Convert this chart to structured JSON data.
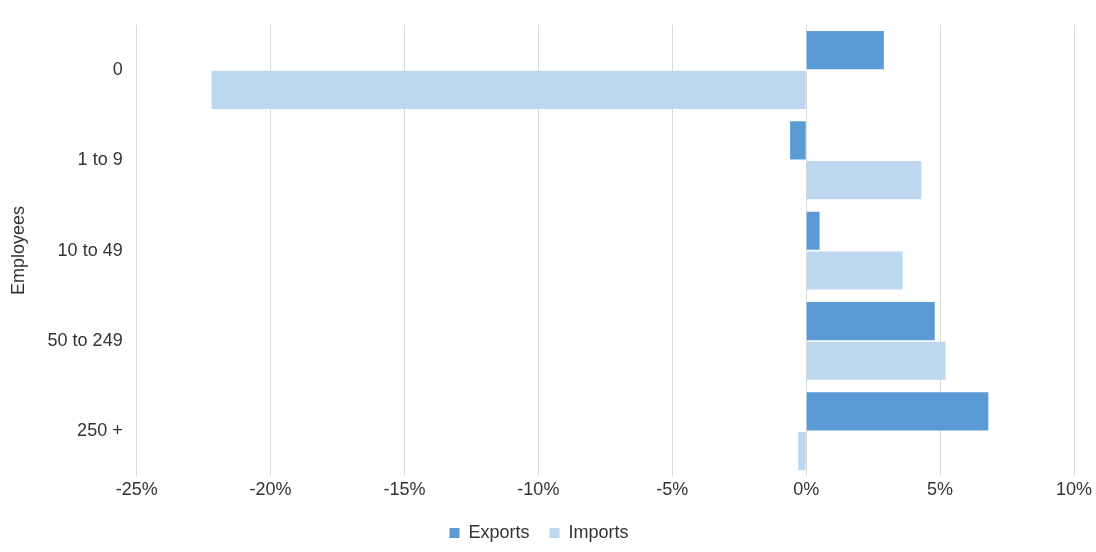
{
  "chart_data": {
    "type": "bar",
    "orientation": "horizontal",
    "ylabel": "Employees",
    "categories": [
      "0",
      "1 to 9",
      "10 to 49",
      "50 to 249",
      "250 +"
    ],
    "series": [
      {
        "name": "Exports",
        "color": "#5b9bd5",
        "values": [
          2.9,
          -0.6,
          0.5,
          4.8,
          6.8
        ]
      },
      {
        "name": "Imports",
        "color": "#bdd7ee",
        "values": [
          -22.2,
          4.3,
          3.6,
          5.2,
          -0.3
        ]
      }
    ],
    "xlim": [
      -25,
      10
    ],
    "xticks": [
      {
        "value": -25,
        "label": "-25%"
      },
      {
        "value": -20,
        "label": "-20%"
      },
      {
        "value": -15,
        "label": "-15%"
      },
      {
        "value": -10,
        "label": "-10%"
      },
      {
        "value": -5,
        "label": "-5%"
      },
      {
        "value": 0,
        "label": "0%"
      },
      {
        "value": 5,
        "label": "5%"
      },
      {
        "value": 10,
        "label": "10%"
      }
    ],
    "grid": "x",
    "legend": "bottom"
  }
}
